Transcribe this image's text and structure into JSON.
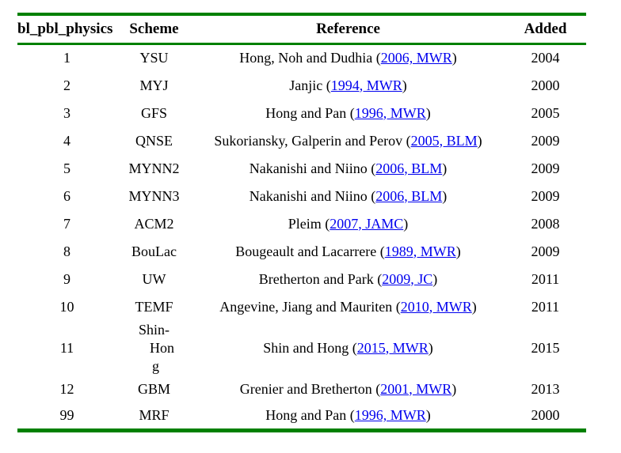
{
  "table": {
    "headers": [
      "bl_pbl_physics",
      "Scheme",
      "Reference",
      "Added"
    ],
    "refs": {
      "paren_open": " (",
      "paren_close": ")"
    },
    "colors": {
      "rule_green": "#008000",
      "link_blue": "#0000EE",
      "text": "#000000"
    },
    "rows": [
      {
        "option": "1",
        "scheme_lines": [
          "YSU"
        ],
        "ref_text": "Hong, Noh and Dudhia",
        "ref_link": "2006, MWR",
        "added": "2004"
      },
      {
        "option": "2",
        "scheme_lines": [
          "MYJ"
        ],
        "ref_text": "Janjic",
        "ref_link": "1994, MWR",
        "added": "2000"
      },
      {
        "option": "3",
        "scheme_lines": [
          "GFS"
        ],
        "ref_text": "Hong and Pan",
        "ref_link": "1996, MWR",
        "added": "2005"
      },
      {
        "option": "4",
        "scheme_lines": [
          "QNSE"
        ],
        "ref_text": "Sukoriansky, Galperin and Perov",
        "ref_link": "2005, BLM",
        "added": "2009"
      },
      {
        "option": "5",
        "scheme_lines": [
          "MYNN2"
        ],
        "ref_text": "Nakanishi and Niino",
        "ref_link": "2006, BLM",
        "added": "2009"
      },
      {
        "option": "6",
        "scheme_lines": [
          "MYNN3"
        ],
        "ref_text": "Nakanishi and Niino",
        "ref_link": "2006, BLM",
        "added": "2009"
      },
      {
        "option": "7",
        "scheme_lines": [
          "ACM2"
        ],
        "ref_text": "Pleim",
        "ref_link": "2007, JAMC",
        "added": "2008"
      },
      {
        "option": "8",
        "scheme_lines": [
          "BouLac"
        ],
        "ref_text": "Bougeault and Lacarrere",
        "ref_link": "1989, MWR",
        "added": "2009"
      },
      {
        "option": "9",
        "scheme_lines": [
          "UW"
        ],
        "ref_text": "Bretherton and Park",
        "ref_link": "2009, JC",
        "added": "2011"
      },
      {
        "option": "10",
        "scheme_lines": [
          "TEMF"
        ],
        "ref_text": "Angevine, Jiang and Mauriten",
        "ref_link": "2010, MWR",
        "added": "2011"
      },
      {
        "option": "11",
        "scheme_lines": [
          "Shin-",
          "Hon",
          "g"
        ],
        "ref_text": "Shin and Hong",
        "ref_link": "2015, MWR",
        "added": "2015"
      },
      {
        "option": "12",
        "scheme_lines": [
          "GBM"
        ],
        "ref_text": "Grenier and Bretherton",
        "ref_link": "2001, MWR",
        "added": "2013"
      },
      {
        "option": "99",
        "scheme_lines": [
          "MRF"
        ],
        "ref_text": "Hong and Pan",
        "ref_link": "1996, MWR",
        "added": "2000"
      }
    ]
  }
}
